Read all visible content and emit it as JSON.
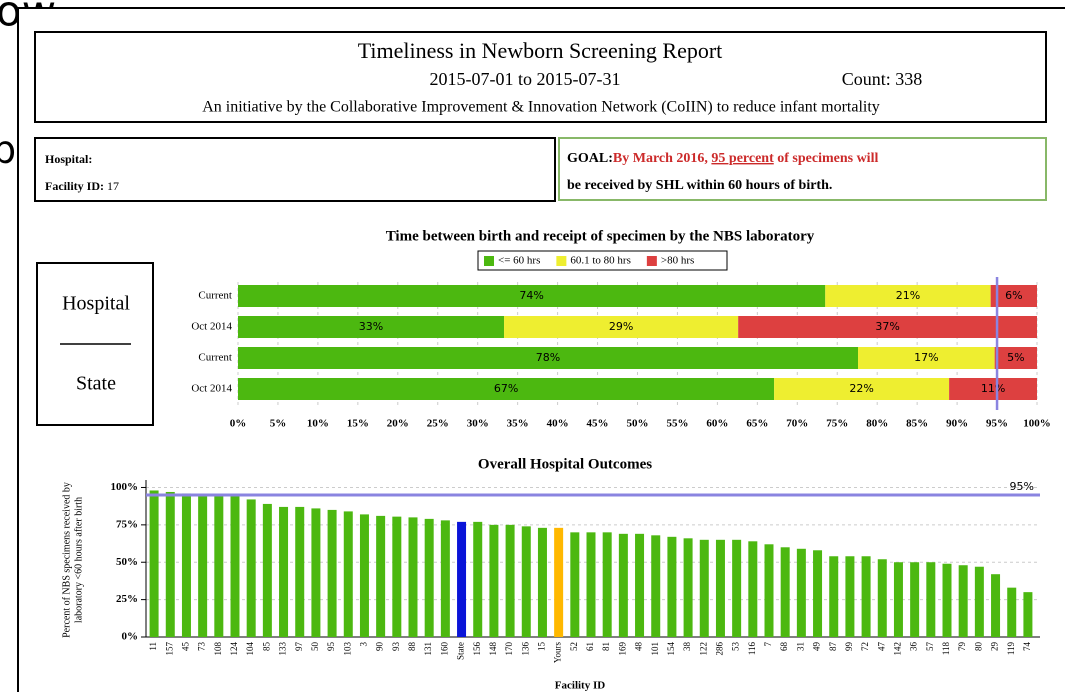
{
  "background_text": [
    "ow",
    "b"
  ],
  "header": {
    "title": "Timeliness in Newborn Screening Report",
    "date_range": "2015-07-01 to 2015-07-31",
    "count": "Count: 338",
    "subtitle": "An initiative by the Collaborative Improvement & Innovation Network (CoIIN) to reduce infant mortality"
  },
  "hospital": {
    "name_label": "Hospital:",
    "facility_label": "Facility ID:",
    "facility_id": "17"
  },
  "goal": {
    "label": "GOAL:",
    "text_1": "By March 2016,",
    "emphasis": "95 percent",
    "text_2": "of specimens will",
    "text_3": "be received by SHL within 60 hours of birth."
  },
  "groups": [
    "Hospital",
    "State"
  ],
  "chart_data": [
    {
      "type": "stacked_bar_horizontal",
      "title": "Time between birth and receipt of specimen by the NBS laboratory",
      "categories": [
        "Current",
        "Oct 2014",
        "Current",
        "Oct 2014"
      ],
      "series": [
        {
          "name": "<= 60 hrs",
          "color": "#4cb810",
          "values": [
            73.5,
            33.3,
            77.6,
            67.1
          ],
          "value_labels": [
            "74%",
            "33%",
            "78%",
            "67%"
          ]
        },
        {
          "name": "60.1 to 80 hrs",
          "color": "#eeee30",
          "values": [
            20.7,
            29.3,
            17.1,
            21.9
          ],
          "value_labels": [
            "21%",
            "29%",
            "17%",
            "22%"
          ]
        },
        {
          "name": ">80 hrs",
          "color": "#dd4040",
          "values": [
            5.8,
            37.4,
            5.3,
            11.0
          ],
          "value_labels": [
            "6%",
            "37%",
            "5%",
            "11%"
          ]
        }
      ],
      "xlim": [
        0,
        100
      ],
      "xticks": [
        {
          "value": 0,
          "label": "0%"
        },
        {
          "value": 5,
          "label": "5%"
        },
        {
          "value": 10,
          "label": "10%"
        },
        {
          "value": 15,
          "label": "15%"
        },
        {
          "value": 20,
          "label": "20%"
        },
        {
          "value": 25,
          "label": "25%"
        },
        {
          "value": 30,
          "label": "30%"
        },
        {
          "value": 35,
          "label": "35%"
        },
        {
          "value": 40,
          "label": "40%"
        },
        {
          "value": 45,
          "label": "45%"
        },
        {
          "value": 50,
          "label": "50%"
        },
        {
          "value": 55,
          "label": "55%"
        },
        {
          "value": 60,
          "label": "60%"
        },
        {
          "value": 65,
          "label": "65%"
        },
        {
          "value": 70,
          "label": "70%"
        },
        {
          "value": 75,
          "label": "75%"
        },
        {
          "value": 80,
          "label": "80%"
        },
        {
          "value": 85,
          "label": "85%"
        },
        {
          "value": 90,
          "label": "90%"
        },
        {
          "value": 95,
          "label": "95%"
        },
        {
          "value": 100,
          "label": "100%"
        }
      ],
      "reference_line": 95,
      "reference_color": "#8a84e0",
      "grid": true
    },
    {
      "type": "bar",
      "title": "Overall Hospital Outcomes",
      "ylabel": [
        "Percent of NBS specimens received by",
        "laboratory <60 hours after birth"
      ],
      "xlabel": "Facility ID",
      "categories": [
        "11",
        "157",
        "45",
        "73",
        "108",
        "124",
        "104",
        "85",
        "133",
        "97",
        "50",
        "95",
        "103",
        "3",
        "90",
        "93",
        "88",
        "131",
        "160",
        "State",
        "156",
        "148",
        "170",
        "136",
        "15",
        "Yours",
        "52",
        "61",
        "81",
        "169",
        "48",
        "101",
        "154",
        "38",
        "122",
        "286",
        "53",
        "116",
        "7",
        "68",
        "31",
        "49",
        "87",
        "99",
        "72",
        "47",
        "142",
        "36",
        "57",
        "118",
        "79",
        "80",
        "29",
        "119",
        "74"
      ],
      "values": [
        98,
        97,
        96,
        95,
        94,
        94,
        92,
        89,
        87,
        87,
        86,
        85,
        84,
        82,
        81,
        80.5,
        80,
        79,
        78,
        77,
        77,
        75,
        75,
        74,
        73,
        73,
        70,
        70,
        70,
        69,
        69,
        68,
        67,
        66,
        65,
        65,
        65,
        64,
        62,
        60,
        59,
        58,
        54,
        54,
        54,
        52,
        50,
        50,
        50,
        49,
        48,
        47,
        42,
        33,
        30
      ],
      "color": "#4cb810",
      "highlight_colors": {
        "State": "#0a14d8",
        "Yours": "#ffb800"
      },
      "ylim": [
        0,
        105
      ],
      "yticks": [
        {
          "value": 0,
          "label": "0%"
        },
        {
          "value": 25,
          "label": "25%"
        },
        {
          "value": 50,
          "label": "50%"
        },
        {
          "value": 75,
          "label": "75%"
        },
        {
          "value": 100,
          "label": "100%"
        }
      ],
      "reference_line": 95,
      "reference_label": "95%",
      "reference_color": "#8a84e0",
      "grid": true
    }
  ]
}
